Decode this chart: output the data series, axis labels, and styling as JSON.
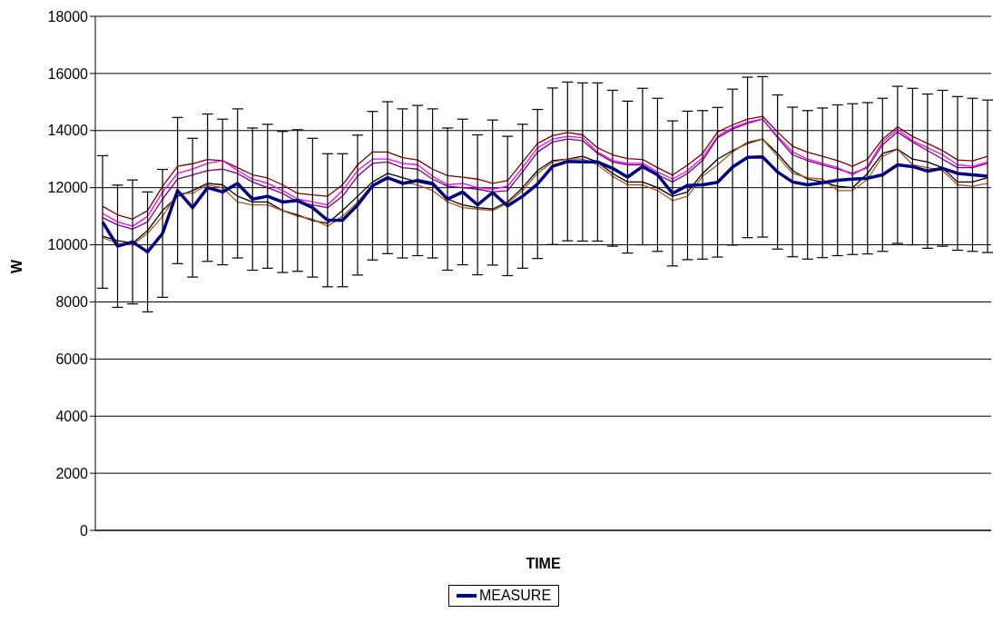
{
  "chart_data": {
    "type": "line",
    "xlabel": "TIME",
    "ylabel": "W",
    "ylim": [
      0,
      18000
    ],
    "yticks": [
      0,
      2000,
      4000,
      6000,
      8000,
      10000,
      12000,
      14000,
      16000,
      18000
    ],
    "grid": "y",
    "legend": "bottom",
    "marker": "none",
    "categories": [
      null,
      null,
      null,
      null,
      null,
      null,
      null,
      null,
      null,
      null,
      null,
      null,
      null,
      null,
      null,
      null,
      null,
      null,
      null,
      null,
      null,
      null,
      null,
      null,
      null,
      null,
      null,
      null,
      null,
      null,
      null,
      null,
      null,
      null,
      null,
      null,
      null,
      null,
      null,
      null,
      null,
      null,
      null,
      null,
      null,
      null,
      null,
      null,
      null,
      null,
      null,
      null,
      null,
      null,
      null,
      null,
      null,
      null,
      null,
      null
    ],
    "series": [
      {
        "name": "MEASURE",
        "color": "#000080",
        "values": [
          10800,
          9950,
          10100,
          9750,
          10400,
          11900,
          11300,
          12000,
          11850,
          12150,
          11600,
          11700,
          11500,
          11550,
          11300,
          10860,
          10860,
          11390,
          12070,
          12350,
          12150,
          12250,
          12150,
          11600,
          11850,
          11400,
          11830,
          11360,
          11700,
          12130,
          12750,
          12920,
          12900,
          12900,
          12680,
          12370,
          12740,
          12450,
          11800,
          12080,
          12100,
          12190,
          12720,
          13060,
          13080,
          12550,
          12200,
          12100,
          12170,
          12260,
          12300,
          12330,
          12450,
          12800,
          12740,
          12580,
          12680,
          12500,
          12450,
          12400
        ],
        "errors": [
          2320,
          2140,
          2170,
          2100,
          2240,
          2560,
          2430,
          2580,
          2550,
          2610,
          2490,
          2520,
          2470,
          2480,
          2430,
          2330,
          2330,
          2450,
          2600,
          2660,
          2610,
          2630,
          2610,
          2490,
          2550,
          2450,
          2540,
          2440,
          2520,
          2610,
          2740,
          2780,
          2770,
          2770,
          2730,
          2660,
          2740,
          2680,
          2540,
          2600,
          2600,
          2620,
          2730,
          2810,
          2810,
          2700,
          2620,
          2600,
          2620,
          2640,
          2640,
          2650,
          2680,
          2750,
          2740,
          2700,
          2730,
          2690,
          2680,
          2670
        ]
      },
      {
        "color": "#ff00ff",
        "values": [
          11100,
          10800,
          10650,
          11000,
          11850,
          12500,
          12650,
          12850,
          12950,
          12600,
          12300,
          12150,
          11900,
          11600,
          11500,
          11400,
          11900,
          12600,
          13000,
          13000,
          12850,
          12800,
          12400,
          12100,
          12150,
          12000,
          11950,
          12050,
          12700,
          13400,
          13700,
          13800,
          13750,
          13250,
          12950,
          12850,
          12850,
          12550,
          12300,
          12600,
          13050,
          13800,
          14100,
          14300,
          14400,
          13800,
          13250,
          13000,
          12850,
          12700,
          12450,
          12750,
          13600,
          14050,
          13650,
          13400,
          13150,
          12800,
          12750,
          12900
        ]
      },
      {
        "color": "#b5541c",
        "values": [
          10250,
          10050,
          10000,
          10400,
          11000,
          11800,
          11800,
          12100,
          12000,
          11500,
          11400,
          11400,
          11200,
          11000,
          10900,
          10650,
          11000,
          11500,
          12100,
          12300,
          12200,
          12100,
          11900,
          11500,
          11300,
          11250,
          11200,
          11450,
          11900,
          12500,
          12900,
          13000,
          13000,
          12800,
          12400,
          12100,
          12100,
          11900,
          11550,
          11700,
          12400,
          12800,
          13250,
          13600,
          13700,
          13100,
          12500,
          12350,
          12300,
          11900,
          11900,
          12300,
          13100,
          13350,
          12800,
          12700,
          12600,
          12100,
          12050,
          12150
        ]
      },
      {
        "color": "#000000",
        "values": [
          10300,
          10150,
          10050,
          10500,
          11200,
          11700,
          11900,
          12150,
          12100,
          11700,
          11500,
          11500,
          11200,
          11050,
          10850,
          10750,
          11200,
          11700,
          12200,
          12500,
          12350,
          12200,
          12100,
          11600,
          11400,
          11300,
          11250,
          11500,
          12000,
          12600,
          12950,
          13000,
          13100,
          12900,
          12500,
          12200,
          12200,
          12000,
          11700,
          11850,
          12500,
          13000,
          13300,
          13550,
          13700,
          13200,
          12600,
          12300,
          12200,
          12050,
          12000,
          12500,
          13200,
          13350,
          13000,
          12900,
          12700,
          12200,
          12200,
          12350
        ]
      },
      {
        "color": "#800080",
        "values": [
          10950,
          10700,
          10550,
          10800,
          11600,
          12300,
          12450,
          12600,
          12650,
          12500,
          12200,
          12000,
          11800,
          11500,
          11400,
          11300,
          11700,
          12400,
          12850,
          12900,
          12700,
          12650,
          12300,
          12050,
          12000,
          11950,
          11850,
          11900,
          12550,
          13250,
          13600,
          13700,
          13650,
          13200,
          12900,
          12800,
          12800,
          12450,
          12200,
          12500,
          12950,
          13750,
          14050,
          14250,
          14400,
          13750,
          13150,
          12950,
          12800,
          12650,
          12500,
          12700,
          13500,
          13950,
          13600,
          13300,
          13000,
          12700,
          12700,
          12850
        ]
      },
      {
        "color": "#800000",
        "values": [
          11350,
          11050,
          10900,
          11200,
          12050,
          12750,
          12840,
          12990,
          12950,
          12700,
          12450,
          12340,
          12100,
          11800,
          11750,
          11700,
          12100,
          12800,
          13250,
          13250,
          13050,
          12970,
          12650,
          12420,
          12370,
          12300,
          12150,
          12250,
          12900,
          13550,
          13820,
          13930,
          13850,
          13400,
          13150,
          13020,
          12990,
          12700,
          12440,
          12790,
          13200,
          13950,
          14200,
          14400,
          14500,
          13950,
          13450,
          13240,
          13100,
          12950,
          12750,
          13000,
          13700,
          14130,
          13790,
          13550,
          13300,
          12970,
          12940,
          13100
        ]
      }
    ]
  }
}
